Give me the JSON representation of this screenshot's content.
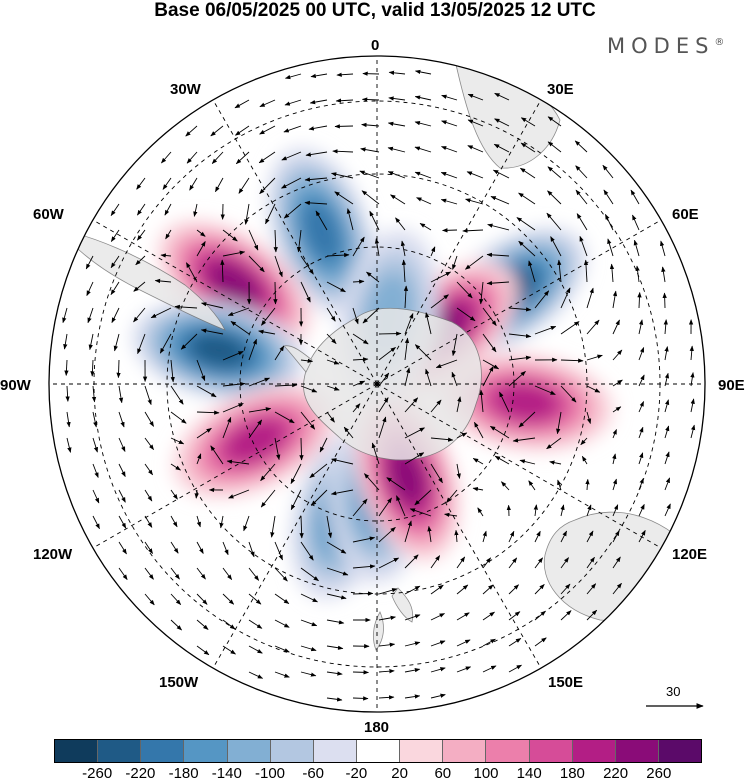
{
  "title": "Base 06/05/2025 00 UTC, valid 13/05/2025 12 UTC",
  "brand": "MODES",
  "brand_mark": "®",
  "map": {
    "projection": "south-polar-stereographic",
    "longitude_labels": {
      "top": "0",
      "top_right": "30E",
      "right_upper": "60E",
      "right": "90E",
      "right_lower": "120E",
      "bottom_right": "150E",
      "bottom": "180",
      "bottom_left": "150W",
      "left_lower": "120W",
      "left": "90W",
      "left_upper": "60W",
      "top_left": "30W"
    },
    "reference_vector": {
      "value": "30",
      "icon": "arrow-right-icon"
    }
  },
  "colorbar": {
    "ticks": [
      "-260",
      "-220",
      "-180",
      "-140",
      "-100",
      "-60",
      "-20",
      "20",
      "60",
      "100",
      "140",
      "180",
      "220",
      "260"
    ],
    "colors": [
      "#0f3b5c",
      "#1f5a86",
      "#3477ab",
      "#5596c4",
      "#82afd3",
      "#b3c7e1",
      "#dcdff0",
      "#ffffff",
      "#fad7de",
      "#f4aec3",
      "#ec7fab",
      "#d64c98",
      "#b31e85",
      "#8a0c78",
      "#5b0a69"
    ]
  },
  "chart_data": {
    "type": "heatmap",
    "title": "Base 06/05/2025 00 UTC, valid 13/05/2025 12 UTC",
    "colorbar_range": [
      -260,
      260
    ],
    "anomaly_centers": [
      {
        "lon": -20,
        "lat": -45,
        "value": -180
      },
      {
        "lon": -55,
        "lat": -42,
        "value": 220
      },
      {
        "lon": -78,
        "lat": -45,
        "value": -240
      },
      {
        "lon": -115,
        "lat": -52,
        "value": 200
      },
      {
        "lon": -165,
        "lat": -52,
        "value": -140
      },
      {
        "lon": 180,
        "lat": -58,
        "value": -160
      },
      {
        "lon": 162,
        "lat": -62,
        "value": 240
      },
      {
        "lon": 55,
        "lat": -45,
        "value": -240
      },
      {
        "lon": 50,
        "lat": -65,
        "value": 220
      },
      {
        "lon": 97,
        "lat": -48,
        "value": 180
      },
      {
        "lon": 10,
        "lat": -70,
        "value": -100
      }
    ]
  }
}
